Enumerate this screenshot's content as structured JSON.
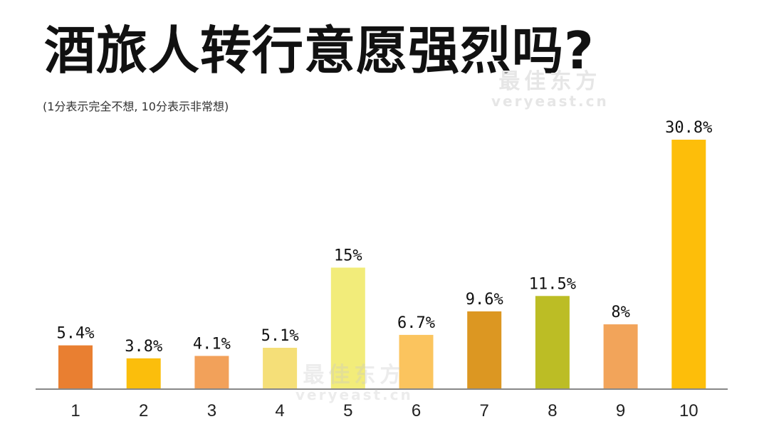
{
  "header": {
    "title": "酒旅人转行意愿强烈吗?",
    "subtitle": "(1分表示完全不想, 10分表示非常想)"
  },
  "watermark": {
    "cn": "最佳东方",
    "en": "veryeast.cn"
  },
  "chart_data": {
    "type": "bar",
    "categories": [
      "1",
      "2",
      "3",
      "4",
      "5",
      "6",
      "7",
      "8",
      "9",
      "10"
    ],
    "values": [
      5.4,
      3.8,
      4.1,
      5.1,
      15,
      6.7,
      9.6,
      11.5,
      8,
      30.8
    ],
    "labels": [
      "5.4%",
      "3.8%",
      "4.1%",
      "5.1%",
      "15%",
      "6.7%",
      "9.6%",
      "11.5%",
      "8%",
      "30.8%"
    ],
    "colors": [
      "#E97F31",
      "#FBBE0C",
      "#F2A15A",
      "#F5DF78",
      "#F2EC7A",
      "#FBC45E",
      "#DC9722",
      "#BCBD25",
      "#F2A45A",
      "#FDBE0A"
    ],
    "ylim": [
      0,
      30.8
    ],
    "grid": false,
    "legend": "none"
  }
}
